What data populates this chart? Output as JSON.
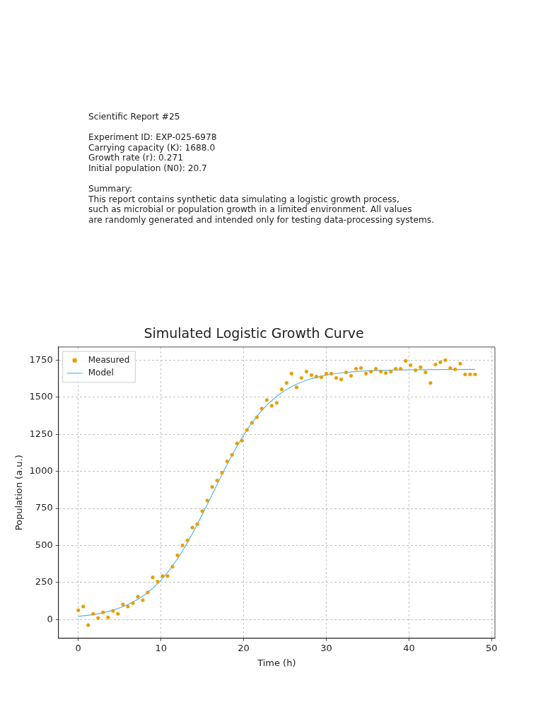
{
  "chart_data": {
    "type": "scatter",
    "title": "Simulated Logistic Growth Curve",
    "xlabel": "Time (h)",
    "ylabel": "Population (a.u.)",
    "annotations": [
      "Scientific Report #25",
      "Experiment ID: EXP-025-6978",
      "Carrying capacity (K): 1688.0",
      "Growth rate (r): 0.271",
      "Initial population (N0): 20.7",
      "Summary:",
      "This report contains synthetic data simulating a logistic growth process,",
      "such as microbial or population growth in a limited environment. All values",
      "are randomly generated and intended only for testing data-processing systems."
    ],
    "xlim": [
      -2.4,
      50.4
    ],
    "xticks": [
      0,
      10,
      20,
      30,
      40,
      50
    ],
    "ylim": [
      -127,
      1839
    ],
    "yticks": [
      0,
      250,
      500,
      750,
      1000,
      1250,
      1500,
      1750
    ],
    "grid": true,
    "legend": "top left",
    "series": [
      {
        "name": "Measured",
        "type": "scatter",
        "marker": "circle",
        "color": "#e69f00",
        "x": [
          0,
          0.6,
          1.2,
          1.8,
          2.4,
          3,
          3.6,
          4.2,
          4.8,
          5.4,
          6,
          6.6,
          7.2,
          7.8,
          8.4,
          9,
          9.6,
          10.2,
          10.8,
          11.4,
          12,
          12.6,
          13.2,
          13.8,
          14.4,
          15,
          15.6,
          16.2,
          16.8,
          17.4,
          18,
          18.6,
          19.2,
          19.8,
          20.4,
          21,
          21.6,
          22.2,
          22.8,
          23.4,
          24,
          24.6,
          25.2,
          25.8,
          26.4,
          27,
          27.6,
          28.2,
          28.8,
          29.4,
          30,
          30.6,
          31.2,
          31.8,
          32.4,
          33,
          33.6,
          34.2,
          34.8,
          35.4,
          36,
          36.6,
          37.2,
          37.8,
          38.4,
          39,
          39.6,
          40.2,
          40.8,
          41.4,
          42,
          42.6,
          43.2,
          43.8,
          44.4,
          45,
          45.6,
          46.2,
          46.8,
          47.4,
          48
        ],
        "values": [
          62,
          87,
          -38,
          38,
          10,
          48,
          14,
          58,
          38,
          101,
          87,
          110,
          154,
          130,
          183,
          284,
          255,
          293,
          293,
          356,
          433,
          500,
          534,
          620,
          644,
          731,
          803,
          894,
          938,
          990,
          1067,
          1111,
          1188,
          1207,
          1279,
          1327,
          1365,
          1423,
          1481,
          1442,
          1462,
          1553,
          1596,
          1659,
          1567,
          1630,
          1673,
          1649,
          1639,
          1635,
          1659,
          1659,
          1630,
          1620,
          1668,
          1644,
          1692,
          1697,
          1659,
          1673,
          1692,
          1673,
          1663,
          1673,
          1692,
          1692,
          1745,
          1716,
          1682,
          1702,
          1668,
          1596,
          1721,
          1736,
          1750,
          1697,
          1688,
          1726,
          1654,
          1654,
          1654
        ]
      },
      {
        "name": "Model",
        "type": "line",
        "marker": "none",
        "line_style": "solid",
        "color": "#56b4e9",
        "x": [
          0,
          2,
          4,
          6,
          8,
          10,
          12,
          14,
          16,
          18,
          20,
          22,
          24,
          26,
          28,
          30,
          32,
          34,
          36,
          40,
          44,
          48
        ],
        "values": [
          21,
          35,
          60,
          101,
          165,
          265,
          410,
          600,
          822,
          1046,
          1244,
          1398,
          1506,
          1577,
          1622,
          1649,
          1665,
          1675,
          1680,
          1685,
          1687,
          1688
        ]
      }
    ]
  }
}
